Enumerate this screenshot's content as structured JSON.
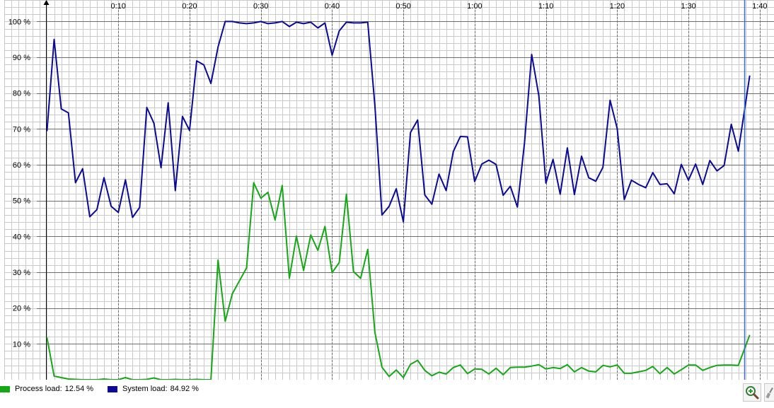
{
  "legend": {
    "process_label": "Process load:",
    "process_value": "12.54 %",
    "system_label": "System load:",
    "system_value": "84.92 %"
  },
  "colors": {
    "process": "#14a814",
    "system": "#0a0a96",
    "cursor": "#3a6fd0",
    "grid_minor": "#c9c9c9",
    "grid_major": "#6e6e6e"
  },
  "toolbar": {
    "zoom_icon": "zoom-in-icon",
    "tool_icon": "wrench-icon"
  },
  "chart_data": {
    "type": "line",
    "title": "",
    "xlabel": "",
    "ylabel": "",
    "xlim": [
      -6,
      102
    ],
    "ylim": [
      0,
      106
    ],
    "cursor_x": 97.8,
    "x_ticks": [
      {
        "value": 10,
        "label": "0:10"
      },
      {
        "value": 20,
        "label": "0:20"
      },
      {
        "value": 30,
        "label": "0:30"
      },
      {
        "value": 40,
        "label": "0:40"
      },
      {
        "value": 50,
        "label": "0:50"
      },
      {
        "value": 60,
        "label": "1:00"
      },
      {
        "value": 70,
        "label": "1:10"
      },
      {
        "value": 80,
        "label": "1:20"
      },
      {
        "value": 90,
        "label": "1:30"
      },
      {
        "value": 100,
        "label": "1:40"
      }
    ],
    "y_ticks": [
      {
        "value": 10,
        "label": "10 %"
      },
      {
        "value": 20,
        "label": "20 %"
      },
      {
        "value": 30,
        "label": "30 %"
      },
      {
        "value": 40,
        "label": "40 %"
      },
      {
        "value": 50,
        "label": "50 %"
      },
      {
        "value": 60,
        "label": "60 %"
      },
      {
        "value": 70,
        "label": "70 %"
      },
      {
        "value": 80,
        "label": "80 %"
      },
      {
        "value": 90,
        "label": "90 %"
      },
      {
        "value": 100,
        "label": "100 %"
      }
    ],
    "series": [
      {
        "name": "System load",
        "color": "#0a0a96",
        "points": [
          [
            0,
            69.4
          ],
          [
            1,
            95
          ],
          [
            2,
            75.6
          ],
          [
            3,
            74.5
          ],
          [
            4,
            55
          ],
          [
            5,
            58.9
          ],
          [
            6,
            45.5
          ],
          [
            7,
            47.5
          ],
          [
            8,
            56.4
          ],
          [
            9,
            48.4
          ],
          [
            10,
            46.7
          ],
          [
            11,
            55.8
          ],
          [
            12,
            45.3
          ],
          [
            13,
            48.1
          ],
          [
            14,
            76
          ],
          [
            15,
            71.6
          ],
          [
            16,
            59.2
          ],
          [
            17,
            77.3
          ],
          [
            18,
            52.8
          ],
          [
            19,
            73.5
          ],
          [
            20,
            69.6
          ],
          [
            21,
            89
          ],
          [
            22,
            87.9
          ],
          [
            23,
            82.7
          ],
          [
            24,
            92.9
          ],
          [
            25,
            100
          ],
          [
            26,
            100
          ],
          [
            27,
            99.6
          ],
          [
            28,
            99.4
          ],
          [
            29,
            99.6
          ],
          [
            30,
            100
          ],
          [
            31,
            99.4
          ],
          [
            32,
            99.6
          ],
          [
            33,
            100
          ],
          [
            34,
            98.6
          ],
          [
            35,
            99.8
          ],
          [
            36,
            99.4
          ],
          [
            37,
            99.8
          ],
          [
            38,
            98.2
          ],
          [
            39,
            99.6
          ],
          [
            40,
            90.6
          ],
          [
            41,
            97.4
          ],
          [
            42,
            99.8
          ],
          [
            43,
            99.6
          ],
          [
            44,
            99.6
          ],
          [
            45,
            99.8
          ],
          [
            46,
            76.5
          ],
          [
            47,
            46
          ],
          [
            48,
            48.4
          ],
          [
            49,
            53.3
          ],
          [
            50,
            44.1
          ],
          [
            51,
            69
          ],
          [
            52,
            72.5
          ],
          [
            53,
            51.6
          ],
          [
            54,
            49
          ],
          [
            55,
            57.4
          ],
          [
            56,
            52.8
          ],
          [
            57,
            63.7
          ],
          [
            58,
            67.9
          ],
          [
            59,
            67.8
          ],
          [
            60,
            55.3
          ],
          [
            61,
            60.2
          ],
          [
            62,
            61.3
          ],
          [
            63,
            60.1
          ],
          [
            64,
            51.5
          ],
          [
            65,
            54
          ],
          [
            66,
            48.2
          ],
          [
            67,
            66.2
          ],
          [
            68,
            90.8
          ],
          [
            69,
            79.3
          ],
          [
            70,
            54.9
          ],
          [
            71,
            61.5
          ],
          [
            72,
            51.8
          ],
          [
            73,
            64.7
          ],
          [
            74,
            51.7
          ],
          [
            75,
            62.4
          ],
          [
            76,
            56.4
          ],
          [
            77,
            55.4
          ],
          [
            78,
            59.3
          ],
          [
            79,
            78
          ],
          [
            80,
            70.1
          ],
          [
            81,
            50.3
          ],
          [
            82,
            55.7
          ],
          [
            83,
            54.5
          ],
          [
            84,
            53.6
          ],
          [
            85,
            57.8
          ],
          [
            86,
            54.5
          ],
          [
            87,
            54.7
          ],
          [
            88,
            51.9
          ],
          [
            89,
            60.1
          ],
          [
            90,
            55.7
          ],
          [
            91,
            60.2
          ],
          [
            92,
            54.5
          ],
          [
            93,
            61.2
          ],
          [
            94,
            58.3
          ],
          [
            95,
            59.8
          ],
          [
            96,
            71.3
          ],
          [
            97,
            63.8
          ],
          [
            98.6,
            84.9
          ]
        ]
      },
      {
        "name": "Process load",
        "color": "#14a814",
        "points": [
          [
            0,
            11.8
          ],
          [
            1,
            1
          ],
          [
            2,
            0.6
          ],
          [
            3,
            0.2
          ],
          [
            4,
            0.1
          ],
          [
            5,
            0
          ],
          [
            6,
            0
          ],
          [
            7,
            0
          ],
          [
            8,
            0.2
          ],
          [
            9,
            0
          ],
          [
            10,
            0
          ],
          [
            11,
            0.6
          ],
          [
            12,
            0
          ],
          [
            13,
            0
          ],
          [
            14,
            0.1
          ],
          [
            15,
            0.5
          ],
          [
            16,
            0
          ],
          [
            17,
            0
          ],
          [
            18,
            0.1
          ],
          [
            19,
            0
          ],
          [
            20,
            0
          ],
          [
            21,
            0.1
          ],
          [
            22,
            0
          ],
          [
            23,
            0
          ],
          [
            24,
            33.4
          ],
          [
            25,
            16.3
          ],
          [
            26,
            24
          ],
          [
            27,
            27.6
          ],
          [
            28,
            31.2
          ],
          [
            29,
            55
          ],
          [
            30,
            50.7
          ],
          [
            31,
            52.3
          ],
          [
            32,
            44.6
          ],
          [
            33,
            54.2
          ],
          [
            34,
            28.3
          ],
          [
            35,
            40.1
          ],
          [
            36,
            30.5
          ],
          [
            37,
            40.4
          ],
          [
            38,
            36.1
          ],
          [
            39,
            42.8
          ],
          [
            40,
            29.9
          ],
          [
            41,
            32.7
          ],
          [
            42,
            51.8
          ],
          [
            43,
            30.2
          ],
          [
            44,
            28.3
          ],
          [
            45,
            36.4
          ],
          [
            46,
            13.2
          ],
          [
            47,
            3.5
          ],
          [
            48,
            0.9
          ],
          [
            49,
            2.7
          ],
          [
            50,
            0.6
          ],
          [
            51,
            4.3
          ],
          [
            52,
            5.4
          ],
          [
            53,
            2.6
          ],
          [
            54,
            1.1
          ],
          [
            55,
            2.1
          ],
          [
            56,
            1.6
          ],
          [
            57,
            3.4
          ],
          [
            58,
            4.1
          ],
          [
            59,
            1.7
          ],
          [
            60,
            3
          ],
          [
            61,
            2.9
          ],
          [
            62,
            1.6
          ],
          [
            63,
            3.2
          ],
          [
            64,
            1.4
          ],
          [
            65,
            3.4
          ],
          [
            66,
            3.5
          ],
          [
            67,
            3.5
          ],
          [
            68,
            3.8
          ],
          [
            69,
            4.2
          ],
          [
            70,
            3
          ],
          [
            71,
            3.4
          ],
          [
            72,
            3.1
          ],
          [
            73,
            4.2
          ],
          [
            74,
            2.2
          ],
          [
            75,
            3.4
          ],
          [
            76,
            2.4
          ],
          [
            77,
            2.2
          ],
          [
            78,
            4
          ],
          [
            79,
            3.6
          ],
          [
            80,
            4.1
          ],
          [
            81,
            1.8
          ],
          [
            82,
            1.8
          ],
          [
            83,
            2.2
          ],
          [
            84,
            2.6
          ],
          [
            85,
            3.7
          ],
          [
            86,
            1.7
          ],
          [
            87,
            3.4
          ],
          [
            88,
            1.6
          ],
          [
            89,
            2.8
          ],
          [
            90,
            4.1
          ],
          [
            91,
            4.1
          ],
          [
            92,
            2.6
          ],
          [
            93,
            3.4
          ],
          [
            94,
            4
          ],
          [
            95,
            4.1
          ],
          [
            96,
            4.1
          ],
          [
            97,
            4
          ],
          [
            98.6,
            12.5
          ]
        ]
      }
    ]
  }
}
